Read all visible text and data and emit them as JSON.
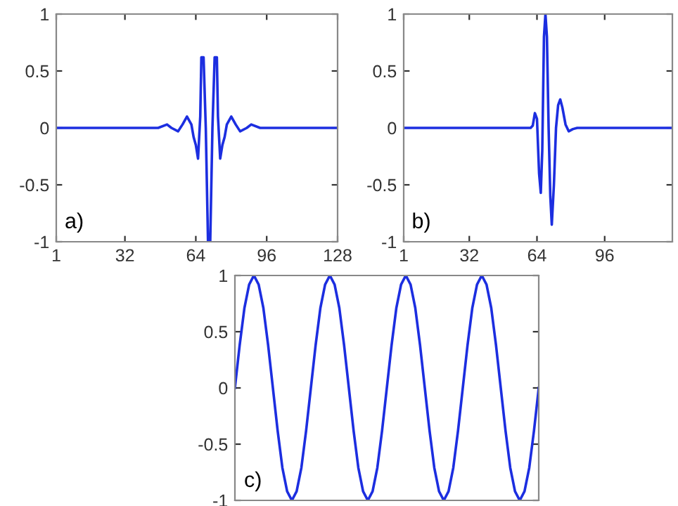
{
  "chart_data": [
    {
      "type": "line",
      "annotations": [
        "a)"
      ],
      "xlim": [
        1,
        128
      ],
      "xticks": [
        1,
        32,
        64,
        96,
        128
      ],
      "ylim": [
        -1,
        1
      ],
      "yticks": [
        -1,
        -0.5,
        0,
        0.5,
        1
      ],
      "grid": false,
      "series": [
        {
          "color": "#1c2ee0",
          "x": [
            1,
            40,
            47,
            51,
            53,
            56,
            58,
            60,
            62,
            63,
            64,
            65,
            66,
            66.5,
            67.5,
            68.5,
            69.5,
            70.5,
            71.5,
            72.5,
            73.5,
            74,
            75,
            76,
            77,
            78,
            80,
            82,
            84,
            87,
            89,
            93,
            100,
            128
          ],
          "values": [
            0,
            0,
            0,
            0.03,
            0,
            -0.03,
            0.03,
            0.1,
            0.03,
            -0.08,
            -0.15,
            -0.27,
            0.1,
            0.62,
            0.62,
            0,
            -1,
            -1,
            0,
            0.62,
            0.62,
            0.1,
            -0.27,
            -0.15,
            -0.08,
            0.03,
            0.1,
            0.03,
            -0.03,
            0,
            0.03,
            0,
            0,
            0
          ]
        }
      ]
    },
    {
      "type": "line",
      "annotations": [
        "b)"
      ],
      "xlim": [
        1,
        128
      ],
      "xticks": [
        1,
        32,
        64,
        96
      ],
      "ylim": [
        -1,
        1
      ],
      "yticks": [
        -1,
        -0.5,
        0,
        0.5,
        1
      ],
      "grid": false,
      "series": [
        {
          "color": "#1c2ee0",
          "x": [
            1,
            61,
            62,
            63,
            64,
            65,
            65.8,
            66.5,
            67.3,
            68,
            68.7,
            69.5,
            70.3,
            71,
            72,
            73,
            74,
            75,
            76,
            77.5,
            79,
            81,
            83,
            128
          ],
          "values": [
            0,
            0,
            0.02,
            0.13,
            0.08,
            -0.4,
            -0.57,
            -0.2,
            0.8,
            1,
            0.8,
            0,
            -0.6,
            -0.85,
            -0.5,
            0,
            0.2,
            0.25,
            0.18,
            0.03,
            -0.03,
            -0.01,
            0,
            0
          ]
        }
      ]
    },
    {
      "type": "line",
      "annotations": [
        "c)"
      ],
      "ylim": [
        -1,
        1
      ],
      "yticks": [
        -1,
        -0.5,
        0,
        0.5,
        1
      ],
      "grid": false,
      "categories": [
        null,
        null,
        null,
        null,
        null,
        null,
        null,
        null,
        null,
        null,
        null,
        null,
        null,
        null,
        null,
        null,
        null,
        null,
        null,
        null,
        null,
        null,
        null,
        null,
        null,
        null,
        null,
        null,
        null,
        null,
        null,
        null,
        null,
        null,
        null,
        null,
        null,
        null,
        null,
        null,
        null,
        null,
        null,
        null,
        null,
        null,
        null,
        null,
        null,
        null,
        null,
        null,
        null,
        null,
        null,
        null,
        null,
        null,
        null,
        null,
        null,
        null,
        null,
        null,
        null
      ],
      "series": [
        {
          "color": "#1c2ee0",
          "values": [
            0,
            0.38,
            0.71,
            0.92,
            1,
            0.92,
            0.71,
            0.38,
            0,
            -0.38,
            -0.71,
            -0.92,
            -1,
            -0.92,
            -0.71,
            -0.38,
            0,
            0.38,
            0.71,
            0.92,
            1,
            0.92,
            0.71,
            0.38,
            0,
            -0.38,
            -0.71,
            -0.92,
            -1,
            -0.92,
            -0.71,
            -0.38,
            0,
            0.38,
            0.71,
            0.92,
            1,
            0.92,
            0.71,
            0.38,
            0,
            -0.38,
            -0.71,
            -0.92,
            -1,
            -0.92,
            -0.71,
            -0.38,
            0,
            0.38,
            0.71,
            0.92,
            1,
            0.92,
            0.71,
            0.38,
            0,
            -0.38,
            -0.71,
            -0.92,
            -1,
            -0.92,
            -0.71,
            -0.38,
            0
          ]
        }
      ]
    }
  ]
}
